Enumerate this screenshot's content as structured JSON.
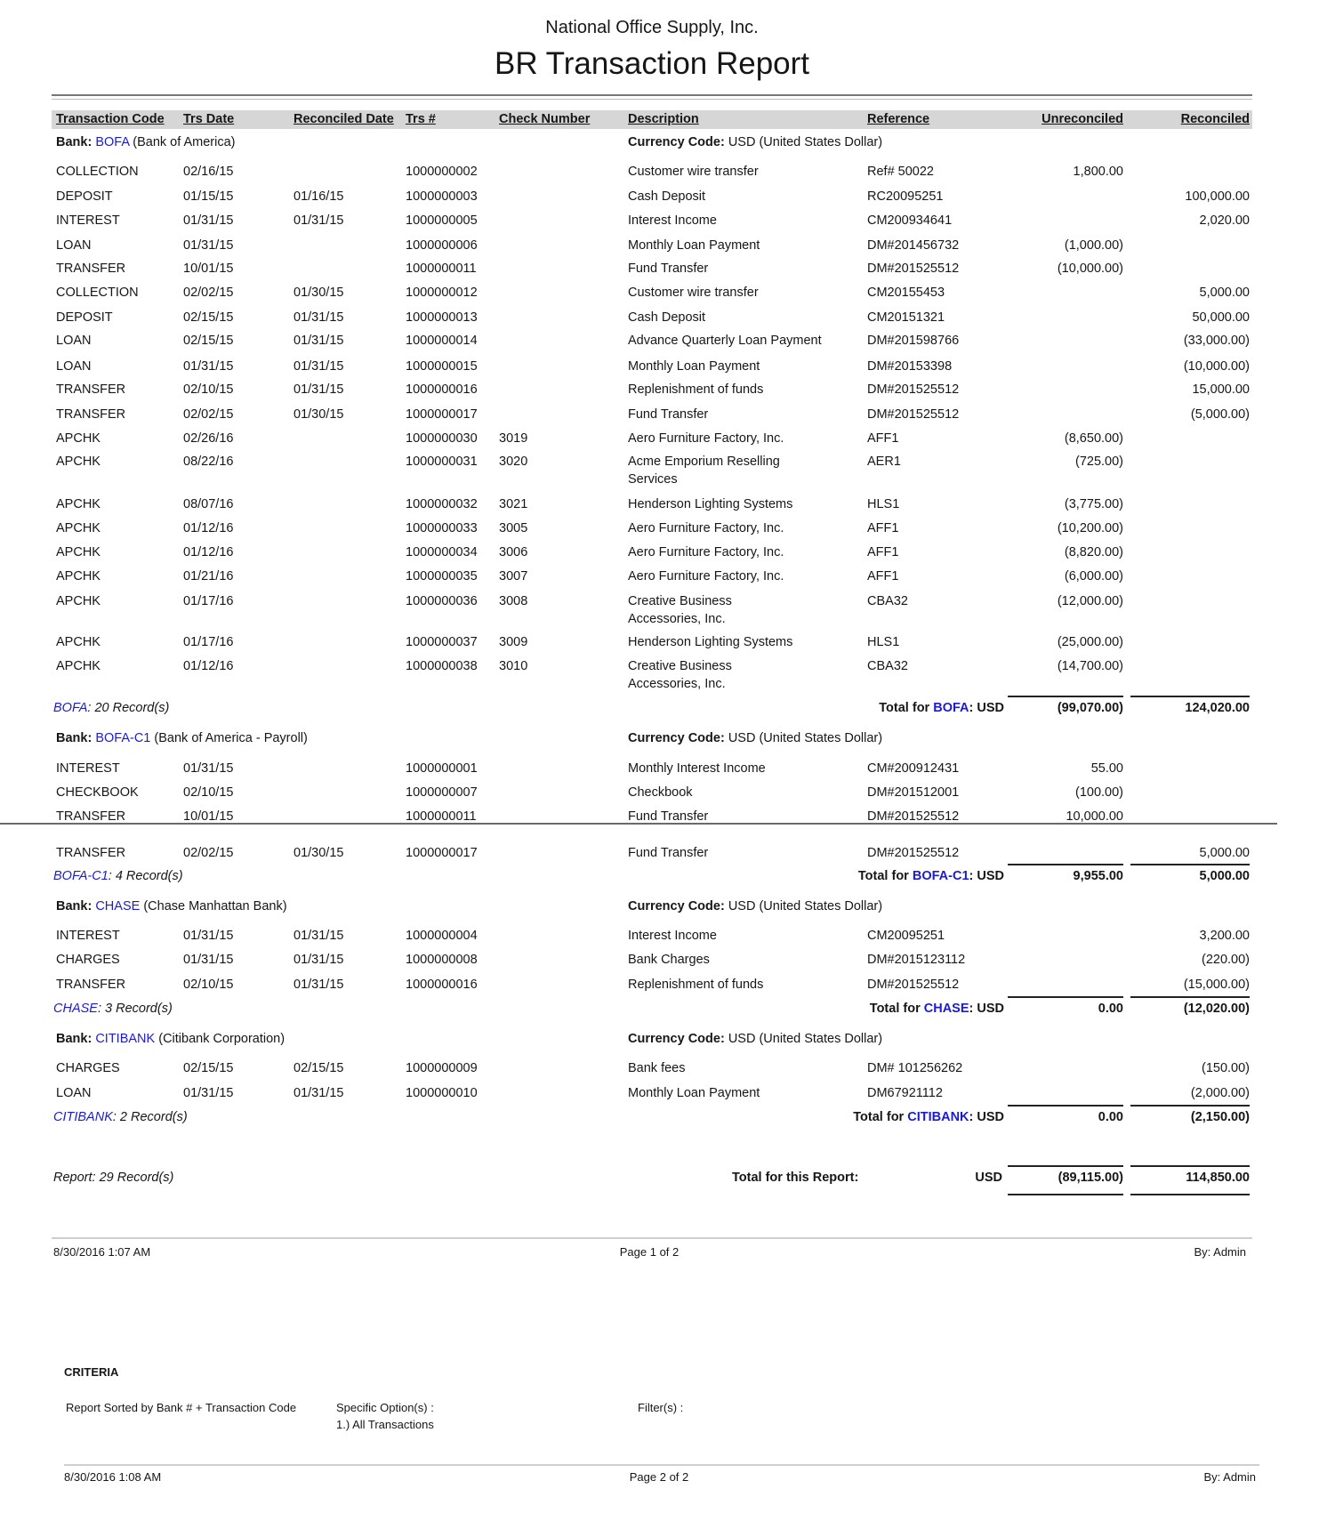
{
  "report": {
    "company": "National Office Supply, Inc.",
    "title": "BR Transaction Report"
  },
  "columns": [
    "Transaction Code",
    "Trs Date",
    "Reconciled Date",
    "Trs #",
    "Check Number",
    "Description",
    "Reference",
    "Unreconciled",
    "Reconciled"
  ],
  "colors": {
    "link": "#1c1ccf",
    "header_bar": "#d6d6d6"
  },
  "banks": [
    {
      "bank_label": "Bank:",
      "code": "BOFA",
      "name": "(Bank of America)",
      "currency_label": "Currency Code:",
      "currency": "USD (United States Dollar)",
      "rows": [
        [
          "COLLECTION",
          "02/16/15",
          "",
          "1000000002",
          "",
          "Customer wire transfer",
          "Ref# 50022",
          "1,800.00",
          ""
        ],
        [
          "DEPOSIT",
          "01/15/15",
          "01/16/15",
          "1000000003",
          "",
          "Cash Deposit",
          "RC20095251",
          "",
          "100,000.00"
        ],
        [
          "INTEREST",
          "01/31/15",
          "01/31/15",
          "1000000005",
          "",
          "Interest Income",
          "CM200934641",
          "",
          "2,020.00"
        ],
        [
          "LOAN",
          "01/31/15",
          "",
          "1000000006",
          "",
          "Monthly Loan Payment",
          "DM#201456732",
          "(1,000.00)",
          ""
        ],
        [
          "TRANSFER",
          "10/01/15",
          "",
          "1000000011",
          "",
          "Fund Transfer",
          "DM#201525512",
          "(10,000.00)",
          ""
        ],
        [
          "COLLECTION",
          "02/02/15",
          "01/30/15",
          "1000000012",
          "",
          "Customer wire transfer",
          "CM20155453",
          "",
          "5,000.00"
        ],
        [
          "DEPOSIT",
          "02/15/15",
          "01/31/15",
          "1000000013",
          "",
          "Cash Deposit",
          "CM20151321",
          "",
          "50,000.00"
        ],
        [
          "LOAN",
          "02/15/15",
          "01/31/15",
          "1000000014",
          "",
          "Advance Quarterly Loan Payment",
          "DM#201598766",
          "",
          "(33,000.00)"
        ],
        [
          "LOAN",
          "01/31/15",
          "01/31/15",
          "1000000015",
          "",
          "Monthly Loan Payment",
          "DM#20153398",
          "",
          "(10,000.00)"
        ],
        [
          "TRANSFER",
          "02/10/15",
          "01/31/15",
          "1000000016",
          "",
          "Replenishment of funds",
          "DM#201525512",
          "",
          "15,000.00"
        ],
        [
          "TRANSFER",
          "02/02/15",
          "01/30/15",
          "1000000017",
          "",
          "Fund Transfer",
          "DM#201525512",
          "",
          "(5,000.00)"
        ],
        [
          "APCHK",
          "02/26/16",
          "",
          "1000000030",
          "3019",
          "Aero Furniture Factory, Inc.",
          "AFF1",
          "(8,650.00)",
          ""
        ],
        [
          "APCHK",
          "08/22/16",
          "",
          "1000000031",
          "3020",
          "Acme Emporium Reselling Services",
          "AER1",
          "(725.00)",
          ""
        ],
        [
          "APCHK",
          "08/07/16",
          "",
          "1000000032",
          "3021",
          "Henderson Lighting Systems",
          "HLS1",
          "(3,775.00)",
          ""
        ],
        [
          "APCHK",
          "01/12/16",
          "",
          "1000000033",
          "3005",
          "Aero Furniture Factory, Inc.",
          "AFF1",
          "(10,200.00)",
          ""
        ],
        [
          "APCHK",
          "01/12/16",
          "",
          "1000000034",
          "3006",
          "Aero Furniture Factory, Inc.",
          "AFF1",
          "(8,820.00)",
          ""
        ],
        [
          "APCHK",
          "01/21/16",
          "",
          "1000000035",
          "3007",
          "Aero Furniture Factory, Inc.",
          "AFF1",
          "(6,000.00)",
          ""
        ],
        [
          "APCHK",
          "01/17/16",
          "",
          "1000000036",
          "3008",
          "Creative Business Accessories, Inc.",
          "CBA32",
          "(12,000.00)",
          ""
        ],
        [
          "APCHK",
          "01/17/16",
          "",
          "1000000037",
          "3009",
          "Henderson Lighting Systems",
          "HLS1",
          "(25,000.00)",
          ""
        ],
        [
          "APCHK",
          "01/12/16",
          "",
          "1000000038",
          "3010",
          "Creative Business Accessories, Inc.",
          "CBA32",
          "(14,700.00)",
          ""
        ]
      ],
      "records_text": ": 20 Record(s)",
      "total_prefix": "Total for ",
      "total_suffix": ": USD",
      "total_unreconciled": "(99,070.00)",
      "total_reconciled": "124,020.00"
    },
    {
      "bank_label": "Bank:",
      "code": "BOFA-C1",
      "name": "(Bank of America - Payroll)",
      "currency_label": "Currency Code:",
      "currency": "USD (United States Dollar)",
      "rows": [
        [
          "INTEREST",
          "01/31/15",
          "",
          "1000000001",
          "",
          "Monthly Interest Income",
          "CM#200912431",
          "55.00",
          ""
        ],
        [
          "CHECKBOOK",
          "02/10/15",
          "",
          "1000000007",
          "",
          "Checkbook",
          "DM#201512001",
          "(100.00)",
          ""
        ],
        [
          "TRANSFER",
          "10/01/15",
          "",
          "1000000011",
          "",
          "Fund Transfer",
          "DM#201525512",
          "10,000.00",
          ""
        ],
        [
          "TRANSFER",
          "02/02/15",
          "01/30/15",
          "1000000017",
          "",
          "Fund Transfer",
          "DM#201525512",
          "",
          "5,000.00"
        ]
      ],
      "records_text": ": 4 Record(s)",
      "total_prefix": "Total for ",
      "total_suffix": ": USD",
      "total_unreconciled": "9,955.00",
      "total_reconciled": "5,000.00"
    },
    {
      "bank_label": "Bank:",
      "code": "CHASE",
      "name": "(Chase Manhattan Bank)",
      "currency_label": "Currency Code:",
      "currency": "USD (United States Dollar)",
      "rows": [
        [
          "INTEREST",
          "01/31/15",
          "01/31/15",
          "1000000004",
          "",
          "Interest Income",
          "CM20095251",
          "",
          "3,200.00"
        ],
        [
          "CHARGES",
          "01/31/15",
          "01/31/15",
          "1000000008",
          "",
          "Bank Charges",
          "DM#2015123112",
          "",
          "(220.00)"
        ],
        [
          "TRANSFER",
          "02/10/15",
          "01/31/15",
          "1000000016",
          "",
          "Replenishment of funds",
          "DM#201525512",
          "",
          "(15,000.00)"
        ]
      ],
      "records_text": ": 3 Record(s)",
      "total_prefix": "Total for ",
      "total_suffix": ": USD",
      "total_unreconciled": "0.00",
      "total_reconciled": "(12,020.00)"
    },
    {
      "bank_label": "Bank:",
      "code": "CITIBANK",
      "name": "(Citibank Corporation)",
      "currency_label": "Currency Code:",
      "currency": "USD (United States Dollar)",
      "rows": [
        [
          "CHARGES",
          "02/15/15",
          "02/15/15",
          "1000000009",
          "",
          "Bank fees",
          "DM# 101256262",
          "",
          "(150.00)"
        ],
        [
          "LOAN",
          "01/31/15",
          "01/31/15",
          "1000000010",
          "",
          "Monthly Loan Payment",
          "DM67921112",
          "",
          "(2,000.00)"
        ]
      ],
      "records_text": ": 2 Record(s)",
      "total_prefix": "Total for ",
      "total_suffix": ": USD",
      "total_unreconciled": "0.00",
      "total_reconciled": "(2,150.00)"
    }
  ],
  "report_total": {
    "records": "Report: 29 Record(s)",
    "label": "Total for this Report:",
    "currency": "USD",
    "unreconciled": "(89,115.00)",
    "reconciled": "114,850.00"
  },
  "footer_page1": {
    "timestamp": "8/30/2016 1:07 AM",
    "page": "Page 1 of 2",
    "by": "By: Admin"
  },
  "criteria": {
    "heading": "CRITERIA",
    "sorted": "Report Sorted by Bank # + Transaction Code",
    "options_label": "Specific Option(s) :",
    "options_value": "1.) All Transactions",
    "filters_label": "Filter(s) :"
  },
  "footer_page2": {
    "timestamp": "8/30/2016 1:08 AM",
    "page": "Page 2 of 2",
    "by": "By: Admin"
  }
}
